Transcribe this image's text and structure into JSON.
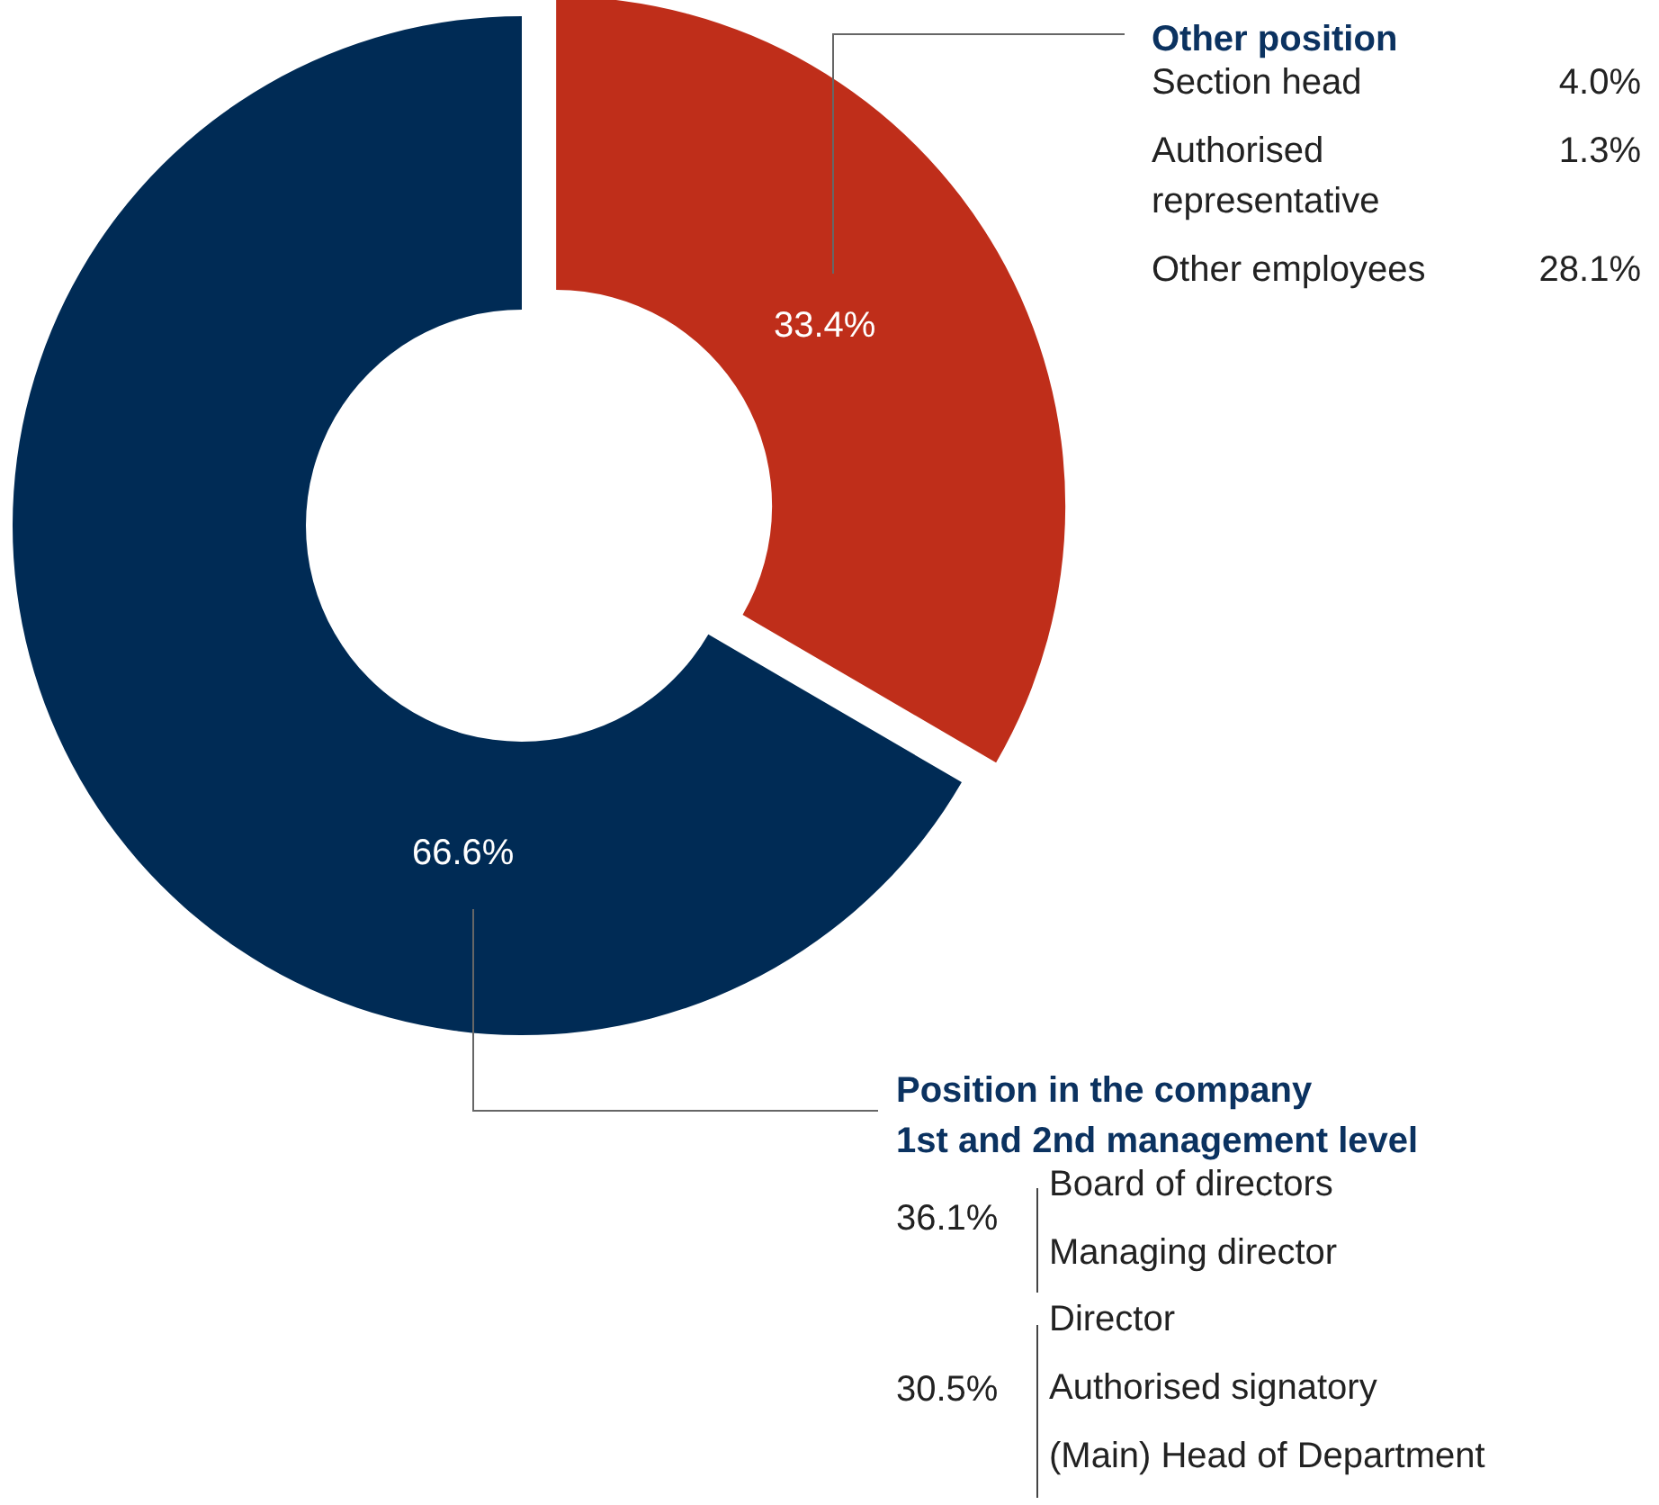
{
  "chart_data": {
    "type": "donut",
    "categories": [
      "Other position",
      "Position in the company\n1st and 2nd management level"
    ],
    "values": [
      33.4,
      66.6
    ],
    "colors": [
      "#bf2e1a",
      "#002b55"
    ],
    "value_labels": [
      "33.4%",
      "66.6%"
    ],
    "annotations": [
      "Section head",
      "4.0%",
      "Authorised\nrepresentative",
      "1.3%",
      "Other employees",
      "28.1%",
      "36.1%",
      "Board of directors",
      "Managing director",
      "30.5%",
      "Director",
      "Authorised signatory",
      "(Main) Head of Department"
    ],
    "legend": false
  }
}
